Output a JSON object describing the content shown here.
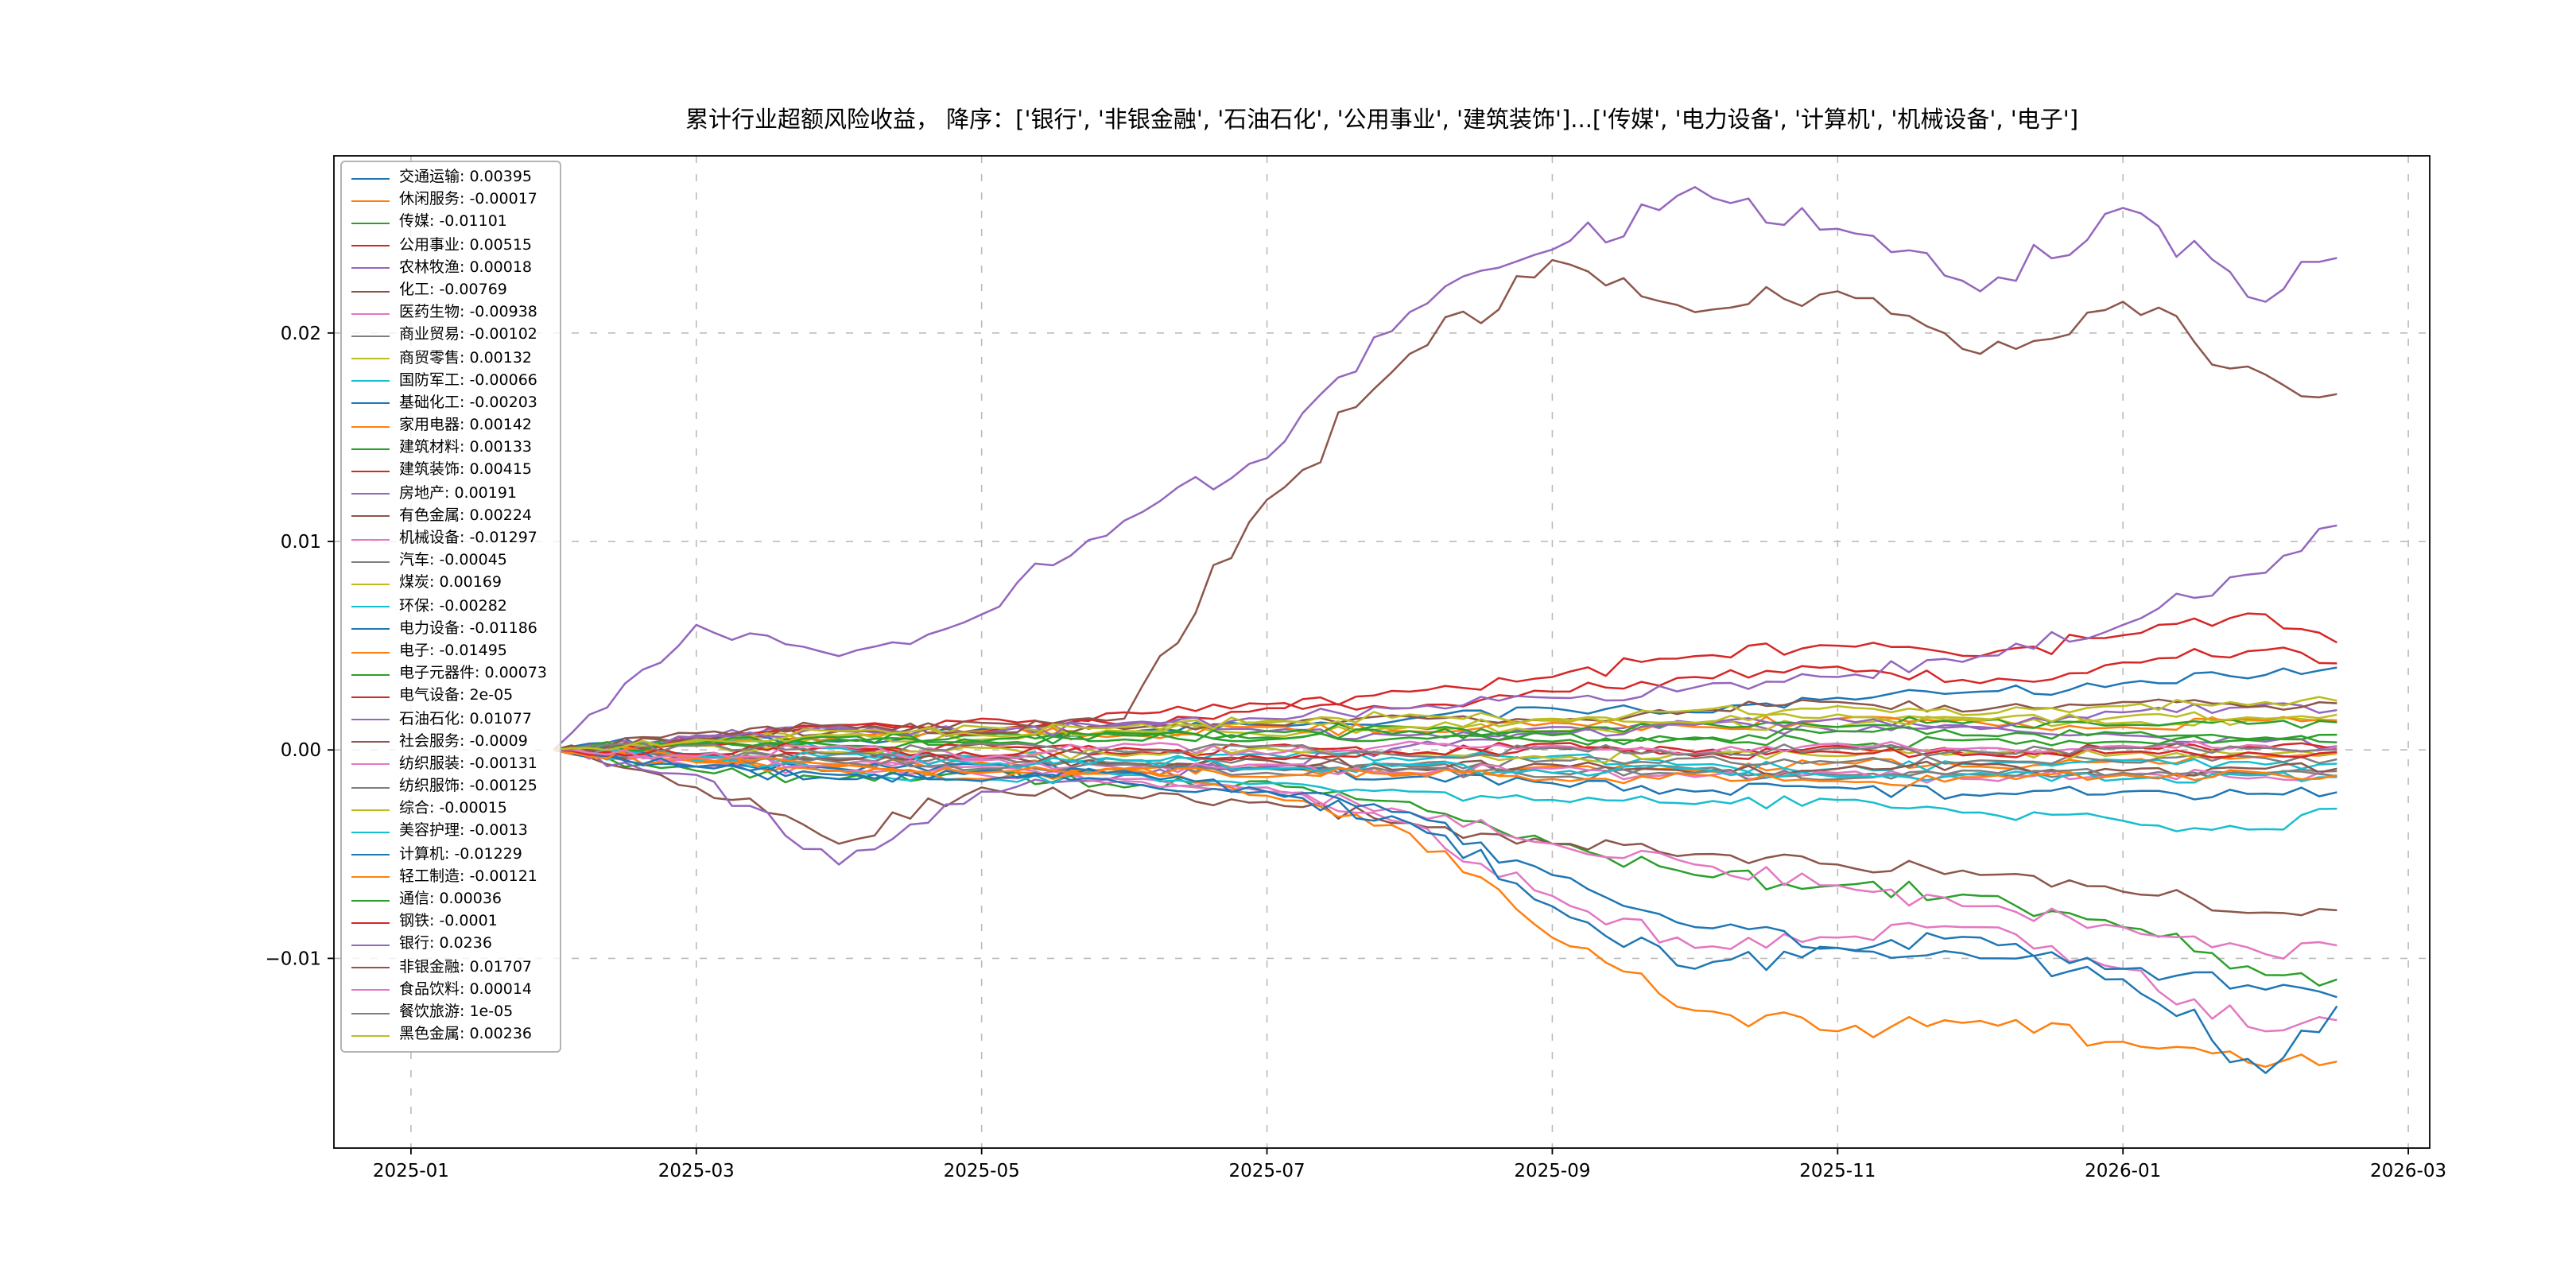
{
  "figure": {
    "background": "#ffffff"
  },
  "chart_data": {
    "type": "line",
    "title": "累计行业超额风险收益， 降序：['银行', '非银金融', '石油石化', '公用事业', '建筑装饰']...['传媒', '电力设备', '计算机', '机械设备', '电子']",
    "xlabel": "",
    "ylabel": "",
    "grid": true,
    "grid_color": "#bbbbbb",
    "legend_position": "upper left",
    "axis_color": "#000000",
    "xlim_months_since_2025_01": [
      -0.54,
      14.15
    ],
    "ylim": [
      -0.0191,
      0.0285
    ],
    "x_ticks": [
      {
        "m": 0,
        "label": "2025-01"
      },
      {
        "m": 2,
        "label": "2025-03"
      },
      {
        "m": 4,
        "label": "2025-05"
      },
      {
        "m": 6,
        "label": "2025-07"
      },
      {
        "m": 8,
        "label": "2025-09"
      },
      {
        "m": 10,
        "label": "2025-11"
      },
      {
        "m": 12,
        "label": "2026-01"
      },
      {
        "m": 14,
        "label": "2026-03"
      }
    ],
    "y_ticks": [
      {
        "v": 0.02,
        "label": "0.02"
      },
      {
        "v": 0.01,
        "label": "0.01"
      },
      {
        "v": 0.0,
        "label": "0.00"
      },
      {
        "v": -0.01,
        "label": "−0.01"
      }
    ],
    "x_points_months": [
      1,
      2,
      3,
      4,
      5,
      6,
      7,
      8,
      9,
      10,
      11,
      12,
      13,
      13.5
    ],
    "series": [
      {
        "name": "交通运输",
        "value_label": "0.00395",
        "color": "#1f77b4",
        "values": [
          0,
          0.0006,
          0.0004,
          0.001,
          0.0008,
          0.0012,
          0.0015,
          0.002,
          0.0018,
          0.0025,
          0.0028,
          0.0032,
          0.0036,
          0.00395
        ]
      },
      {
        "name": "休闲服务",
        "value_label": "-0.00017",
        "color": "#ff7f0e",
        "values": [
          0,
          -0.0004,
          -0.0008,
          -0.0006,
          -0.001,
          -0.0008,
          -0.0012,
          -0.0008,
          -0.001,
          -0.0006,
          -0.0008,
          -0.0005,
          -0.0003,
          -0.00017
        ]
      },
      {
        "name": "传媒",
        "value_label": "-0.01101",
        "color": "#2ca02c",
        "values": [
          0,
          -0.001,
          -0.0014,
          -0.001,
          -0.0018,
          -0.0015,
          -0.0025,
          -0.0045,
          -0.006,
          -0.0065,
          -0.007,
          -0.0085,
          -0.0108,
          -0.01101
        ]
      },
      {
        "name": "公用事业",
        "value_label": "0.00515",
        "color": "#d62728",
        "values": [
          0,
          0.0006,
          0.001,
          0.0015,
          0.0012,
          0.002,
          0.0028,
          0.0035,
          0.0045,
          0.005,
          0.0045,
          0.0055,
          0.0065,
          0.00515
        ]
      },
      {
        "name": "农林牧渔",
        "value_label": "0.00018",
        "color": "#9467bd",
        "values": [
          0,
          0.0007,
          0.0011,
          0.0009,
          0.0013,
          0.0009,
          0.0007,
          0.0011,
          0.0013,
          0.0009,
          0.0011,
          0.0007,
          0.0004,
          0.00018
        ]
      },
      {
        "name": "化工",
        "value_label": "-0.00769",
        "color": "#8c564b",
        "values": [
          0,
          -0.0018,
          -0.0045,
          -0.0018,
          -0.0022,
          -0.0025,
          -0.0035,
          -0.0045,
          -0.005,
          -0.0055,
          -0.006,
          -0.0068,
          -0.0078,
          -0.00769
        ]
      },
      {
        "name": "医药生物",
        "value_label": "-0.00938",
        "color": "#e377c2",
        "values": [
          0,
          -0.0008,
          -0.0004,
          -0.0012,
          -0.0015,
          -0.002,
          -0.003,
          -0.0045,
          -0.0055,
          -0.0065,
          -0.0075,
          -0.0085,
          -0.0098,
          -0.00938
        ]
      },
      {
        "name": "商业贸易",
        "value_label": "-0.00102",
        "color": "#7f7f7f",
        "values": [
          0,
          -0.0003,
          -0.0005,
          -0.0004,
          -0.0007,
          -0.0009,
          -0.0008,
          -0.0011,
          -0.0009,
          -0.0012,
          -0.001,
          -0.0012,
          -0.0011,
          -0.00102
        ]
      },
      {
        "name": "商贸零售",
        "value_label": "0.00132",
        "color": "#bcbd22",
        "values": [
          0,
          0.0004,
          0.0007,
          0.0005,
          0.0009,
          0.0007,
          0.0011,
          0.0009,
          0.0013,
          0.0011,
          0.0015,
          0.0013,
          0.0014,
          0.00132
        ]
      },
      {
        "name": "国防军工",
        "value_label": "-0.00066",
        "color": "#17becf",
        "values": [
          0,
          0.0004,
          0.0001,
          -0.0003,
          -0.0005,
          -0.0002,
          -0.0005,
          -0.0003,
          -0.0007,
          -0.0009,
          -0.0007,
          -0.0005,
          -0.0007,
          -0.00066
        ]
      },
      {
        "name": "基础化工",
        "value_label": "-0.00203",
        "color": "#1f77b4",
        "values": [
          0,
          -0.0005,
          -0.0009,
          -0.0007,
          -0.0011,
          -0.0009,
          -0.0013,
          -0.0016,
          -0.002,
          -0.0018,
          -0.0022,
          -0.002,
          -0.0021,
          -0.00203
        ]
      },
      {
        "name": "家用电器",
        "value_label": "0.00142",
        "color": "#ff7f0e",
        "values": [
          0,
          0.0003,
          0.0006,
          0.0009,
          0.0007,
          0.0011,
          0.0009,
          0.0013,
          0.0011,
          0.0015,
          0.0013,
          0.0011,
          0.0014,
          0.00142
        ]
      },
      {
        "name": "建筑材料",
        "value_label": "0.00133",
        "color": "#2ca02c",
        "values": [
          0,
          0.0004,
          0.0002,
          0.0007,
          0.0005,
          0.0009,
          0.0011,
          0.0009,
          0.0013,
          0.0011,
          0.0014,
          0.0012,
          0.0013,
          0.00133
        ]
      },
      {
        "name": "建筑装饰",
        "value_label": "0.00415",
        "color": "#d62728",
        "values": [
          0,
          0.0005,
          0.0012,
          0.0008,
          0.0018,
          0.0022,
          0.002,
          0.0028,
          0.0035,
          0.004,
          0.0032,
          0.0042,
          0.0048,
          0.00415
        ]
      },
      {
        "name": "房地产",
        "value_label": "0.00191",
        "color": "#9467bd",
        "values": [
          0,
          -0.0012,
          -0.0055,
          -0.002,
          -0.0012,
          -0.0008,
          0.0002,
          0.0008,
          0.0012,
          0.0015,
          0.001,
          0.0018,
          0.0022,
          0.00191
        ]
      },
      {
        "name": "有色金属",
        "value_label": "0.00224",
        "color": "#8c564b",
        "values": [
          0,
          0.0005,
          0.0009,
          0.0013,
          0.001,
          0.0012,
          0.0016,
          0.0014,
          0.0019,
          0.0023,
          0.0019,
          0.0023,
          0.0021,
          0.00224
        ]
      },
      {
        "name": "机械设备",
        "value_label": "-0.01297",
        "color": "#e377c2",
        "values": [
          0,
          -0.0005,
          -0.001,
          -0.0008,
          -0.0014,
          -0.0018,
          -0.0035,
          -0.007,
          -0.0095,
          -0.009,
          -0.0085,
          -0.0105,
          -0.0135,
          -0.01297
        ]
      },
      {
        "name": "汽车",
        "value_label": "-0.00045",
        "color": "#7f7f7f",
        "values": [
          0,
          -0.0002,
          -0.0004,
          -0.0003,
          -0.0006,
          -0.0004,
          -0.0007,
          -0.0005,
          -0.0004,
          -0.0006,
          -0.0005,
          -0.0006,
          -0.0004,
          -0.00045
        ]
      },
      {
        "name": "煤炭",
        "value_label": "0.00169",
        "color": "#bcbd22",
        "values": [
          0,
          0.0004,
          0.0007,
          0.0011,
          0.0009,
          0.0013,
          0.0011,
          0.0015,
          0.0013,
          0.0017,
          0.0014,
          0.0016,
          0.0015,
          0.00169
        ]
      },
      {
        "name": "环保",
        "value_label": "-0.00282",
        "color": "#17becf",
        "values": [
          0,
          -0.0005,
          -0.001,
          -0.0014,
          -0.0012,
          -0.0016,
          -0.002,
          -0.0024,
          -0.0026,
          -0.0024,
          -0.003,
          -0.0034,
          -0.0038,
          -0.00282
        ]
      },
      {
        "name": "电力设备",
        "value_label": "-0.01186",
        "color": "#1f77b4",
        "values": [
          0,
          -0.0008,
          -0.0014,
          -0.001,
          -0.0016,
          -0.002,
          -0.003,
          -0.006,
          -0.0085,
          -0.0095,
          -0.009,
          -0.0105,
          -0.0115,
          -0.01186
        ]
      },
      {
        "name": "电子",
        "value_label": "-0.01495",
        "color": "#ff7f0e",
        "values": [
          0,
          -0.0006,
          -0.001,
          -0.0014,
          -0.001,
          -0.0022,
          -0.004,
          -0.009,
          -0.0125,
          -0.0135,
          -0.013,
          -0.014,
          -0.0152,
          -0.01495
        ]
      },
      {
        "name": "电子元器件",
        "value_label": "0.00073",
        "color": "#2ca02c",
        "values": [
          0,
          0.0003,
          0.0006,
          0.0004,
          0.0008,
          0.0006,
          0.0009,
          0.0007,
          0.0005,
          0.0009,
          0.0007,
          0.0008,
          0.0006,
          0.00073
        ]
      },
      {
        "name": "电气设备",
        "value_label": "2e-05",
        "color": "#d62728",
        "values": [
          0,
          0.0002,
          -0.0002,
          0.0003,
          -0.0002,
          0.0002,
          -0.0002,
          0.0003,
          -0.0001,
          0.0002,
          -0.0002,
          0.0001,
          0.0001,
          2e-05
        ]
      },
      {
        "name": "石油石化",
        "value_label": "0.01077",
        "color": "#9467bd",
        "values": [
          0,
          0.0006,
          0.001,
          0.0008,
          0.0012,
          0.0015,
          0.002,
          0.0025,
          0.003,
          0.0035,
          0.0045,
          0.006,
          0.0085,
          0.01077
        ]
      },
      {
        "name": "社会服务",
        "value_label": "-0.0009",
        "color": "#8c564b",
        "values": [
          0,
          -0.0003,
          -0.0005,
          -0.0004,
          -0.0007,
          -0.0005,
          -0.0009,
          -0.0007,
          -0.0011,
          -0.0009,
          -0.0007,
          -0.001,
          -0.0009,
          -0.0009
        ]
      },
      {
        "name": "纺织服装",
        "value_label": "-0.00131",
        "color": "#e377c2",
        "values": [
          0,
          -0.0004,
          -0.0007,
          -0.0005,
          -0.0009,
          -0.0007,
          -0.0011,
          -0.0009,
          -0.0013,
          -0.0011,
          -0.0014,
          -0.0012,
          -0.0013,
          -0.00131
        ]
      },
      {
        "name": "纺织服饰",
        "value_label": "-0.00125",
        "color": "#7f7f7f",
        "values": [
          0,
          -0.0003,
          -0.0006,
          -0.0009,
          -0.0007,
          -0.0011,
          -0.0009,
          -0.0013,
          -0.0011,
          -0.0014,
          -0.0012,
          -0.0011,
          -0.0012,
          -0.00125
        ]
      },
      {
        "name": "综合",
        "value_label": "-0.00015",
        "color": "#bcbd22",
        "values": [
          0,
          0.0002,
          -0.0001,
          0.0001,
          -0.0003,
          0.0001,
          -0.0002,
          -0.0004,
          -0.0002,
          -0.0003,
          -0.0001,
          -0.0002,
          -0.0002,
          -0.00015
        ]
      },
      {
        "name": "美容护理",
        "value_label": "-0.0013",
        "color": "#17becf",
        "values": [
          0,
          -0.0003,
          -0.0002,
          -0.0007,
          -0.0005,
          -0.0009,
          -0.0007,
          -0.0011,
          -0.0009,
          -0.0013,
          -0.0011,
          -0.0014,
          -0.0012,
          -0.0013
        ]
      },
      {
        "name": "计算机",
        "value_label": "-0.01229",
        "color": "#1f77b4",
        "values": [
          0,
          -0.0008,
          -0.0012,
          -0.0015,
          -0.001,
          -0.002,
          -0.0035,
          -0.0075,
          -0.0105,
          -0.0095,
          -0.01,
          -0.011,
          -0.0155,
          -0.01229
        ]
      },
      {
        "name": "轻工制造",
        "value_label": "-0.00121",
        "color": "#ff7f0e",
        "values": [
          0,
          -0.0004,
          -0.0007,
          -0.0011,
          -0.0009,
          -0.0013,
          -0.0011,
          -0.0014,
          -0.0012,
          -0.0015,
          -0.0013,
          -0.0012,
          -0.0011,
          -0.00121
        ]
      },
      {
        "name": "通信",
        "value_label": "0.00036",
        "color": "#2ca02c",
        "values": [
          0,
          0.0003,
          0.0005,
          0.0004,
          0.0007,
          0.0005,
          0.0006,
          0.0004,
          0.0006,
          0.0003,
          0.0005,
          0.0004,
          0.0005,
          0.00036
        ]
      },
      {
        "name": "钢铁",
        "value_label": "-0.0001",
        "color": "#d62728",
        "values": [
          0,
          -0.0002,
          0.0002,
          -0.0003,
          0.0001,
          -0.0004,
          -0.0002,
          0.0001,
          -0.0003,
          -0.0001,
          -0.0002,
          -0.0001,
          -0.0002,
          -0.0001
        ]
      },
      {
        "name": "银行",
        "value_label": "0.0236",
        "color": "#9467bd",
        "values": [
          0,
          0.006,
          0.0045,
          0.0065,
          0.011,
          0.014,
          0.021,
          0.024,
          0.027,
          0.025,
          0.022,
          0.026,
          0.0215,
          0.0236
        ]
      },
      {
        "name": "非银金融",
        "value_label": "0.01707",
        "color": "#8c564b",
        "values": [
          0,
          0.0008,
          0.0012,
          0.0008,
          0.0015,
          0.012,
          0.019,
          0.0235,
          0.021,
          0.022,
          0.019,
          0.0215,
          0.018,
          0.01707
        ]
      },
      {
        "name": "食品饮料",
        "value_label": "0.00014",
        "color": "#e377c2",
        "values": [
          0,
          -0.0003,
          0.0002,
          -0.0004,
          0.0003,
          -0.0002,
          0.0004,
          0.0002,
          -0.0002,
          0.0003,
          0.0001,
          0.0002,
          0.0002,
          0.00014
        ]
      },
      {
        "name": "餐饮旅游",
        "value_label": "1e-05",
        "color": "#7f7f7f",
        "values": [
          0,
          0.0002,
          -0.0002,
          0.0003,
          -0.0001,
          0.0002,
          -0.0003,
          0.0001,
          -0.0002,
          0.0001,
          -0.0001,
          0.0001,
          0.0001,
          1e-05
        ]
      },
      {
        "name": "黑色金属",
        "value_label": "0.00236",
        "color": "#bcbd22",
        "values": [
          0,
          0.0005,
          0.0009,
          0.0007,
          0.0011,
          0.0014,
          0.0017,
          0.0014,
          0.0019,
          0.0021,
          0.0017,
          0.0021,
          0.0023,
          0.00236
        ]
      }
    ]
  }
}
